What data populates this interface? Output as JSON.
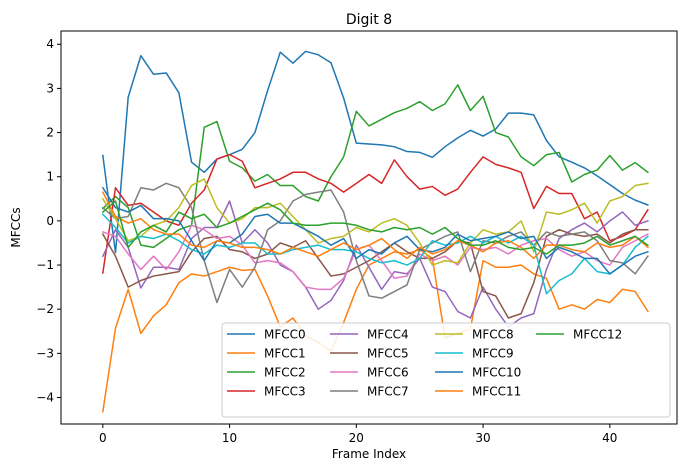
{
  "chart_data": {
    "type": "line",
    "title": "Digit 8",
    "xlabel": "Frame Index",
    "ylabel": "MFCCs",
    "xlim": [
      -3.3,
      45.3
    ],
    "ylim": [
      -4.6,
      4.3
    ],
    "xticks": [
      0,
      10,
      20,
      30,
      40
    ],
    "yticks": [
      -4,
      -3,
      -2,
      -1,
      0,
      1,
      2,
      3,
      4
    ],
    "grid": false,
    "legend_position": "lower-right",
    "legend_columns": 4,
    "x": [
      0,
      1,
      2,
      3,
      4,
      5,
      6,
      7,
      8,
      9,
      10,
      11,
      12,
      13,
      14,
      15,
      16,
      17,
      18,
      19,
      20,
      21,
      22,
      23,
      24,
      25,
      26,
      27,
      28,
      29,
      30,
      31,
      32,
      33,
      34,
      35,
      36,
      37,
      38,
      39,
      40,
      41,
      42,
      43
    ],
    "series": [
      {
        "name": "MFCC0",
        "color": "#1f77b4",
        "values": [
          1.48,
          -0.72,
          2.8,
          3.74,
          3.32,
          3.35,
          2.9,
          1.33,
          1.1,
          1.4,
          1.5,
          1.62,
          2.0,
          2.95,
          3.82,
          3.57,
          3.84,
          3.76,
          3.58,
          2.78,
          1.76,
          1.74,
          1.72,
          1.68,
          1.57,
          1.55,
          1.44,
          1.68,
          1.88,
          2.05,
          1.92,
          2.08,
          2.44,
          2.44,
          2.4,
          1.82,
          1.45,
          1.33,
          1.2,
          1.02,
          0.82,
          0.62,
          0.47,
          0.36
        ]
      },
      {
        "name": "MFCC1",
        "color": "#ff7f0e",
        "values": [
          -4.32,
          -2.43,
          -1.55,
          -2.55,
          -2.15,
          -1.9,
          -1.4,
          -1.2,
          -1.25,
          -1.15,
          -1.05,
          -1.12,
          -1.1,
          -1.7,
          -2.4,
          -2.2,
          -2.6,
          -2.75,
          -2.95,
          -2.3,
          -1.55,
          -1.0,
          -0.85,
          -0.7,
          -0.75,
          -0.65,
          -0.85,
          -2.65,
          -2.55,
          -2.45,
          -0.9,
          -1.05,
          -1.05,
          -1.0,
          -1.2,
          -1.3,
          -2.0,
          -1.9,
          -2.0,
          -1.78,
          -1.85,
          -1.55,
          -1.6,
          -2.05
        ]
      },
      {
        "name": "MFCC2",
        "color": "#2ca02c",
        "values": [
          0.28,
          0.55,
          0.3,
          -0.55,
          -0.6,
          -0.4,
          -0.2,
          -0.1,
          2.12,
          2.25,
          1.35,
          1.2,
          0.9,
          1.05,
          0.8,
          0.8,
          0.55,
          0.45,
          1.0,
          1.45,
          2.48,
          2.15,
          2.3,
          2.45,
          2.55,
          2.7,
          2.5,
          2.65,
          3.08,
          2.5,
          2.82,
          2.0,
          1.9,
          1.45,
          1.25,
          1.5,
          1.55,
          0.88,
          1.05,
          1.15,
          1.48,
          1.15,
          1.32,
          1.1
        ]
      },
      {
        "name": "MFCC3",
        "color": "#d62728",
        "values": [
          -1.18,
          0.75,
          0.35,
          0.4,
          0.2,
          0.0,
          -0.1,
          0.4,
          0.7,
          1.4,
          1.5,
          1.35,
          0.75,
          0.85,
          0.95,
          1.1,
          1.1,
          0.95,
          0.85,
          0.65,
          0.85,
          1.05,
          0.85,
          1.38,
          1.0,
          0.72,
          0.78,
          0.58,
          0.72,
          1.1,
          1.45,
          1.28,
          1.2,
          1.1,
          0.28,
          0.78,
          0.62,
          0.62,
          0.05,
          0.2,
          -0.45,
          -0.35,
          -0.2,
          0.25
        ]
      },
      {
        "name": "MFCC4",
        "color": "#9467bd",
        "values": [
          -0.8,
          -0.2,
          -0.6,
          -1.52,
          -1.05,
          -1.05,
          -1.1,
          -0.4,
          -0.15,
          -0.15,
          0.45,
          -0.5,
          -0.2,
          -0.5,
          -1.0,
          -1.15,
          -1.5,
          -2.0,
          -1.8,
          -1.35,
          -0.55,
          -1.05,
          -1.55,
          -1.15,
          -1.2,
          -0.85,
          -1.5,
          -1.6,
          -2.05,
          -2.2,
          -1.5,
          -2.0,
          -2.4,
          -2.2,
          -2.1,
          -1.1,
          -0.4,
          -0.2,
          -0.05,
          -0.25,
          0.0,
          0.2,
          -0.1,
          0.0
        ]
      },
      {
        "name": "MFCC5",
        "color": "#8c564b",
        "values": [
          -0.3,
          -0.8,
          -1.5,
          -1.35,
          -1.25,
          -1.2,
          -1.15,
          -0.7,
          -0.4,
          -0.35,
          -0.65,
          -0.7,
          -0.85,
          -0.75,
          -0.5,
          -0.6,
          -0.45,
          -0.85,
          -1.25,
          -1.2,
          -1.05,
          -0.9,
          -0.7,
          -0.5,
          -0.7,
          -0.85,
          -0.85,
          -0.7,
          -0.45,
          -0.5,
          -1.6,
          -1.7,
          -2.2,
          -2.1,
          -1.4,
          -0.35,
          -0.2,
          -0.3,
          -0.35,
          -0.3,
          -0.5,
          -0.3,
          -0.2,
          -0.2
        ]
      },
      {
        "name": "MFCC6",
        "color": "#e377c2",
        "values": [
          -0.25,
          -0.35,
          -0.75,
          -1.1,
          -0.8,
          -1.1,
          -0.7,
          -0.1,
          -0.2,
          -0.4,
          -0.35,
          -0.55,
          -0.95,
          -0.9,
          -0.95,
          -1.15,
          -1.5,
          -1.55,
          -1.55,
          -1.3,
          -0.65,
          -0.55,
          -0.9,
          -1.3,
          -1.25,
          -0.75,
          -0.9,
          -0.8,
          -1.0,
          -0.6,
          -0.65,
          -0.6,
          -0.75,
          -0.55,
          -0.45,
          -0.4,
          -0.65,
          -0.8,
          -0.7,
          -0.9,
          -1.0,
          -0.6,
          -0.45,
          -0.3
        ]
      },
      {
        "name": "MFCC7",
        "color": "#7f7f7f",
        "values": [
          0.3,
          0.05,
          0.1,
          0.75,
          0.7,
          0.85,
          0.75,
          0.3,
          -0.9,
          -1.85,
          -1.1,
          -1.5,
          -1.05,
          -0.2,
          0.0,
          0.45,
          0.6,
          0.65,
          0.7,
          0.2,
          -0.9,
          -1.7,
          -1.75,
          -1.6,
          -1.45,
          -0.65,
          -0.5,
          -0.35,
          -0.25,
          -1.15,
          -0.45,
          -0.5,
          -0.35,
          -0.25,
          -0.55,
          -0.25,
          -0.35,
          -0.3,
          -0.25,
          -0.45,
          -0.9,
          -0.95,
          -1.2,
          -0.8
        ]
      },
      {
        "name": "MFCC8",
        "color": "#bcbd22",
        "values": [
          0.5,
          0.05,
          -0.45,
          -0.35,
          -0.1,
          0.0,
          0.3,
          0.8,
          0.95,
          0.3,
          -0.05,
          0.05,
          0.3,
          0.3,
          0.4,
          0.1,
          -0.2,
          -0.5,
          -0.4,
          -0.35,
          -0.15,
          -0.25,
          -0.05,
          0.05,
          -0.1,
          -0.5,
          -1.0,
          -0.9,
          -0.95,
          -0.5,
          -0.2,
          -0.3,
          -0.25,
          0.0,
          -0.7,
          0.2,
          0.15,
          0.25,
          0.4,
          -0.05,
          0.45,
          0.55,
          0.8,
          0.85
        ]
      },
      {
        "name": "MFCC9",
        "color": "#17becf",
        "values": [
          0.15,
          -0.15,
          -0.5,
          -0.35,
          -0.4,
          -0.3,
          -0.45,
          -0.65,
          -0.75,
          -0.55,
          -0.6,
          -0.5,
          -0.5,
          -0.75,
          -0.75,
          -0.65,
          -0.6,
          -0.55,
          -0.65,
          -0.65,
          -0.7,
          -0.85,
          -0.95,
          -0.9,
          -1.0,
          -0.85,
          -0.45,
          -0.55,
          -0.5,
          -0.35,
          -0.5,
          -0.35,
          -0.5,
          -0.35,
          -0.55,
          -1.65,
          -1.35,
          -1.2,
          -0.85,
          -1.15,
          -1.2,
          -1.0,
          -0.6,
          -0.35
        ]
      },
      {
        "name": "MFCC10",
        "color": "#1f77b4",
        "values": [
          0.75,
          0.3,
          0.2,
          0.35,
          0.05,
          0.05,
          0.0,
          -0.45,
          -0.9,
          -0.45,
          -0.5,
          -0.3,
          0.1,
          0.15,
          -0.05,
          -0.05,
          -0.2,
          -0.35,
          -0.55,
          -0.4,
          -0.85,
          -0.65,
          -0.75,
          -0.5,
          -0.35,
          -0.65,
          -0.7,
          -0.6,
          -0.3,
          -0.45,
          -0.4,
          -0.35,
          -0.25,
          -0.4,
          -0.35,
          -0.85,
          -0.6,
          -0.7,
          -0.85,
          -0.85,
          -1.2,
          -1.0,
          -0.8,
          -0.7
        ]
      },
      {
        "name": "MFCC11",
        "color": "#ff7f0e",
        "values": [
          0.65,
          0.1,
          -0.05,
          0.05,
          -0.2,
          -0.3,
          -0.3,
          -0.55,
          -0.6,
          -0.45,
          -0.5,
          -0.6,
          -0.6,
          -0.65,
          -0.75,
          -0.6,
          -0.7,
          -0.8,
          -0.65,
          -0.5,
          -0.65,
          -0.55,
          -0.4,
          -0.65,
          -0.85,
          -0.6,
          -0.75,
          -0.65,
          -0.45,
          -0.55,
          -0.7,
          -0.5,
          -0.45,
          -0.6,
          -0.85,
          -0.55,
          -0.55,
          -0.65,
          -0.7,
          -0.5,
          -0.6,
          -0.55,
          -0.35,
          -0.6
        ]
      },
      {
        "name": "MFCC12",
        "color": "#2ca02c",
        "values": [
          0.2,
          0.45,
          -0.6,
          -0.25,
          -0.1,
          -0.25,
          0.2,
          0.05,
          0.15,
          -0.15,
          -0.05,
          0.1,
          0.25,
          0.4,
          0.25,
          -0.05,
          -0.1,
          -0.1,
          -0.05,
          -0.05,
          -0.1,
          -0.2,
          -0.25,
          -0.15,
          -0.2,
          -0.15,
          -0.3,
          -0.15,
          -0.4,
          -0.55,
          -0.55,
          -0.45,
          -0.6,
          -0.65,
          -0.6,
          -0.75,
          -0.55,
          -0.55,
          -0.5,
          -0.35,
          -0.55,
          -0.45,
          -0.35,
          -0.55
        ]
      }
    ]
  }
}
